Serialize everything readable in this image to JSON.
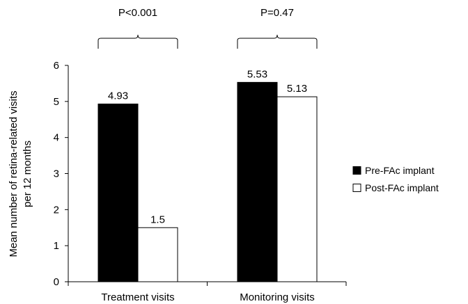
{
  "chart_data": {
    "type": "bar",
    "categories": [
      "Treatment visits",
      "Monitoring visits"
    ],
    "series": [
      {
        "name": "Pre-FAc implant",
        "values": [
          4.93,
          5.53
        ],
        "value_labels": [
          "4.93",
          "5.53"
        ],
        "color": "#000000"
      },
      {
        "name": "Post-FAc implant",
        "values": [
          1.5,
          5.13
        ],
        "value_labels": [
          "1.5",
          "5.13"
        ],
        "color": "#ffffff"
      }
    ],
    "ylabel": "Mean number of retina-related visits per 12 months",
    "ylabel_lines": [
      "Mean number of retina-related visits",
      "per 12 months"
    ],
    "ylim": [
      0,
      6
    ],
    "yticks": [
      0,
      1,
      2,
      3,
      4,
      5,
      6
    ],
    "grid": false,
    "legend_position": "right",
    "annotations": [
      {
        "category": "Treatment visits",
        "text": "P<0.001"
      },
      {
        "category": "Monitoring visits",
        "text": "P=0.47"
      }
    ]
  }
}
